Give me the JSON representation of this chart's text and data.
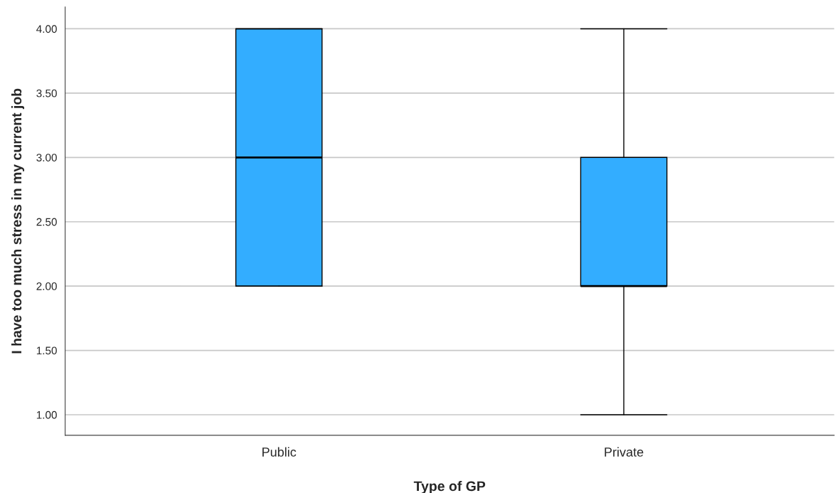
{
  "chart_data": {
    "type": "box",
    "xlabel": "Type of GP",
    "ylabel": "I have too much stress in my current job",
    "categories": [
      "Public",
      "Private"
    ],
    "boxes": [
      {
        "low": 2,
        "q1": 2,
        "median": 3,
        "q3": 4,
        "high": 4
      },
      {
        "low": 1,
        "q1": 2,
        "median": 2,
        "q3": 3,
        "high": 4
      }
    ],
    "color": "#33adff",
    "ylim": [
      0.84,
      4.17
    ],
    "yticks": [
      {
        "value": 1,
        "label": "1.00"
      },
      {
        "value": 1.5,
        "label": "1.50"
      },
      {
        "value": 2,
        "label": "2.00"
      },
      {
        "value": 2.5,
        "label": "2.50"
      },
      {
        "value": 3,
        "label": "3.00"
      },
      {
        "value": 3.5,
        "label": "3.50"
      },
      {
        "value": 4,
        "label": "4.00"
      }
    ],
    "grid": "y",
    "legend": false
  }
}
